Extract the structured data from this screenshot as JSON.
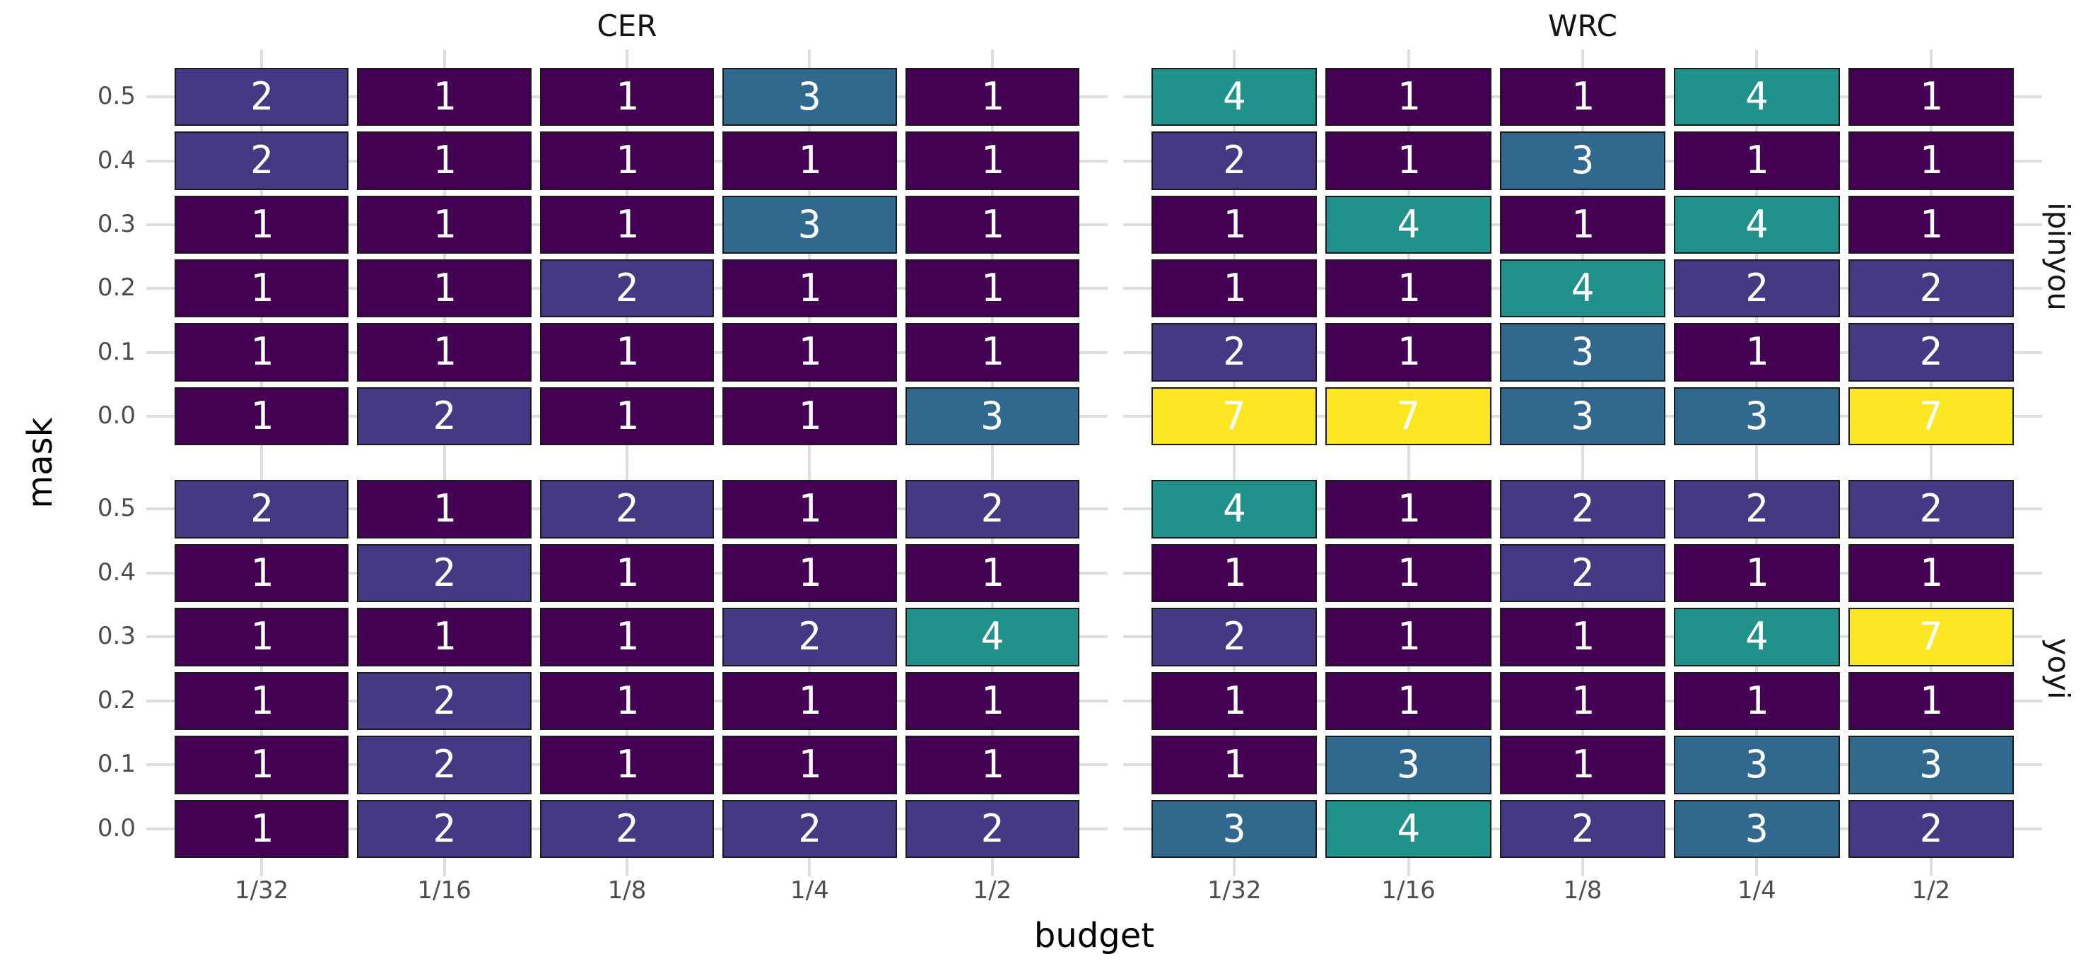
{
  "figure": {
    "ylabel": "mask",
    "xlabel": "budget",
    "col_titles": [
      "CER",
      "WRC"
    ],
    "row_titles": [
      "ipinyou",
      "yoyi"
    ]
  },
  "chart_data": {
    "type": "heatmap",
    "facet_cols": [
      "CER",
      "WRC"
    ],
    "facet_rows": [
      "ipinyou",
      "yoyi"
    ],
    "x": [
      "1/32",
      "1/16",
      "1/8",
      "1/4",
      "1/2"
    ],
    "y": [
      "0.5",
      "0.4",
      "0.3",
      "0.2",
      "0.1",
      "0.0"
    ],
    "xlabel": "budget",
    "ylabel": "mask",
    "legend": "none",
    "grid": "dashed light-gray stubs at tick positions",
    "panels": [
      {
        "facet_col": "CER",
        "facet_row": "ipinyou",
        "values": [
          [
            2,
            1,
            1,
            3,
            1
          ],
          [
            2,
            1,
            1,
            1,
            1
          ],
          [
            1,
            1,
            1,
            3,
            1
          ],
          [
            1,
            1,
            2,
            1,
            1
          ],
          [
            1,
            1,
            1,
            1,
            1
          ],
          [
            1,
            2,
            1,
            1,
            3
          ]
        ]
      },
      {
        "facet_col": "WRC",
        "facet_row": "ipinyou",
        "values": [
          [
            4,
            1,
            1,
            4,
            1
          ],
          [
            2,
            1,
            3,
            1,
            1
          ],
          [
            1,
            4,
            1,
            4,
            1
          ],
          [
            1,
            1,
            4,
            2,
            2
          ],
          [
            2,
            1,
            3,
            1,
            2
          ],
          [
            7,
            7,
            3,
            3,
            7
          ]
        ]
      },
      {
        "facet_col": "CER",
        "facet_row": "yoyi",
        "values": [
          [
            2,
            1,
            2,
            1,
            2
          ],
          [
            1,
            2,
            1,
            1,
            1
          ],
          [
            1,
            1,
            1,
            2,
            4
          ],
          [
            1,
            2,
            1,
            1,
            1
          ],
          [
            1,
            2,
            1,
            1,
            1
          ],
          [
            1,
            2,
            2,
            2,
            2
          ]
        ]
      },
      {
        "facet_col": "WRC",
        "facet_row": "yoyi",
        "values": [
          [
            4,
            1,
            2,
            2,
            2
          ],
          [
            1,
            1,
            2,
            1,
            1
          ],
          [
            2,
            1,
            1,
            4,
            7
          ],
          [
            1,
            1,
            1,
            1,
            1
          ],
          [
            1,
            3,
            1,
            3,
            3
          ],
          [
            3,
            4,
            2,
            3,
            2
          ]
        ]
      }
    ],
    "value_colors": {
      "1": "#440154",
      "2": "#443983",
      "3": "#31688e",
      "4": "#21918c",
      "7": "#fde725"
    },
    "cell_text_color": "#ffffff",
    "tick_label_color": "#4d4d4d",
    "title_color": "#141414"
  }
}
